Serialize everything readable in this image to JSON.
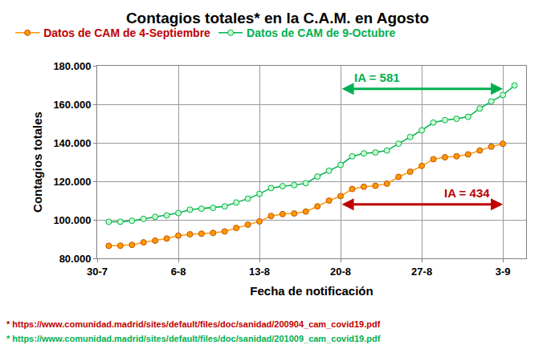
{
  "chart_data": {
    "type": "line",
    "title": "Contagios totales* en la C.A.M. en Agosto",
    "x_label": "Fecha de notificación",
    "y_label": "Contagios totales",
    "categories": [
      "30-7",
      null,
      null,
      null,
      null,
      null,
      null,
      "6-8",
      null,
      null,
      null,
      null,
      null,
      null,
      "13-8",
      null,
      null,
      null,
      null,
      null,
      null,
      "20-8",
      null,
      null,
      null,
      null,
      null,
      null,
      "27-8",
      null,
      null,
      null,
      null,
      null,
      null,
      "3-9",
      null,
      null
    ],
    "series": [
      {
        "name": "Datos de CAM de 4-Septiembre",
        "color": "#ff9900",
        "marker": "circle",
        "values": [
          null,
          86500,
          86600,
          87000,
          88300,
          89200,
          90300,
          91800,
          92500,
          92800,
          93200,
          94000,
          95800,
          97500,
          99200,
          102000,
          103000,
          103300,
          104300,
          107000,
          110000,
          112300,
          116000,
          117200,
          117700,
          118800,
          122300,
          125000,
          128000,
          131500,
          132500,
          133000,
          134000,
          136000,
          138000,
          139500,
          null,
          null
        ]
      },
      {
        "name": "Datos de CAM de 9-Octubre",
        "color": "#00b050",
        "marker": "circle",
        "values": [
          null,
          99000,
          99000,
          99500,
          100500,
          101500,
          102300,
          103500,
          105300,
          105800,
          106200,
          107000,
          109000,
          111000,
          113500,
          116500,
          117500,
          118000,
          119000,
          122500,
          125500,
          128500,
          133000,
          134500,
          135000,
          136000,
          139500,
          143000,
          146500,
          150500,
          151800,
          152500,
          153500,
          157800,
          161500,
          164800,
          169800,
          null
        ]
      }
    ],
    "ylim": [
      80000,
      180000
    ],
    "yticks": [
      {
        "value": 80000,
        "label": "80.000"
      },
      {
        "value": 100000,
        "label": "100.000"
      },
      {
        "value": 120000,
        "label": "120.000"
      },
      {
        "value": 140000,
        "label": "140.000"
      },
      {
        "value": 160000,
        "label": "160.000"
      },
      {
        "value": 180000,
        "label": "180.000"
      }
    ],
    "grid": true,
    "legend": "top",
    "annotations": [
      {
        "text": "IA = 581",
        "from": "20-8",
        "to": "3-9",
        "y": 168000,
        "color": "#00b050"
      },
      {
        "text": "IA = 434",
        "from": "20-8",
        "to": "3-9",
        "y": 108000,
        "color": "#c00000"
      }
    ],
    "footnotes": [
      "* https://www.comunidad.madrid/sites/default/files/doc/sanidad/200904_cam_covid19.pdf",
      "* https://www.comunidad.madrid/sites/default/files/doc/sanidad/201009_cam_covid19.pdf"
    ]
  }
}
